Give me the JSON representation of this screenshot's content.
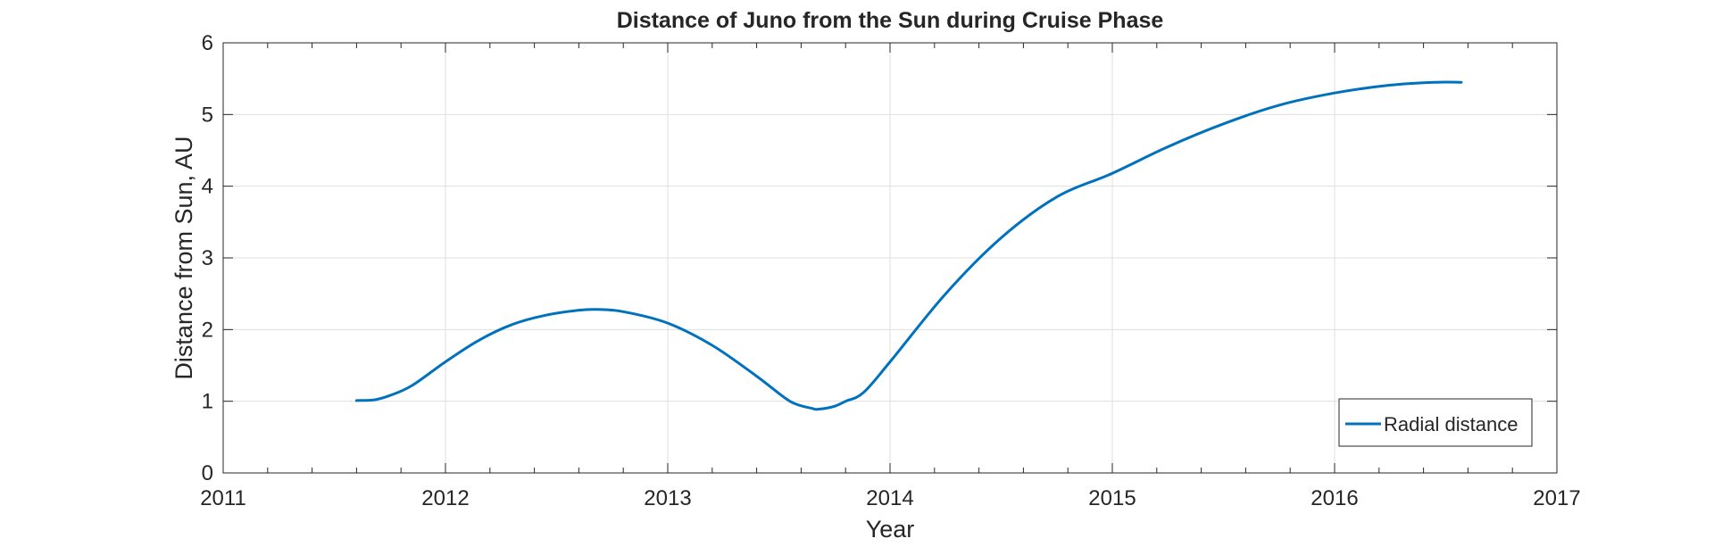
{
  "chart_data": {
    "type": "line",
    "title": "Distance of Juno from the Sun during Cruise Phase",
    "xlabel": "Year",
    "ylabel": "Distance from Sun, AU",
    "xlim": [
      2011,
      2017
    ],
    "ylim": [
      0,
      6
    ],
    "xticks": [
      "2011",
      "2012",
      "2013",
      "2014",
      "2015",
      "2016",
      "2017"
    ],
    "yticks": [
      "0",
      "1",
      "2",
      "3",
      "4",
      "5",
      "6"
    ],
    "grid": true,
    "minor_ticks_x": true,
    "legend_position": "bottom-right",
    "series": [
      {
        "name": "Radial distance",
        "color": "#0072BD",
        "x": [
          2011.6,
          2011.68,
          2011.75,
          2011.85,
          2012.0,
          2012.15,
          2012.3,
          2012.45,
          2012.6,
          2012.68,
          2012.8,
          2013.0,
          2013.2,
          2013.4,
          2013.55,
          2013.65,
          2013.68,
          2013.75,
          2013.8,
          2013.88,
          2014.0,
          2014.25,
          2014.5,
          2014.75,
          2015.0,
          2015.25,
          2015.5,
          2015.75,
          2016.0,
          2016.25,
          2016.45,
          2016.57
        ],
        "y": [
          1.01,
          1.02,
          1.08,
          1.22,
          1.55,
          1.85,
          2.07,
          2.2,
          2.27,
          2.28,
          2.25,
          2.09,
          1.78,
          1.35,
          1.0,
          0.9,
          0.89,
          0.93,
          1.0,
          1.12,
          1.55,
          2.5,
          3.28,
          3.85,
          4.18,
          4.55,
          4.87,
          5.13,
          5.3,
          5.41,
          5.45,
          5.45
        ]
      }
    ]
  }
}
